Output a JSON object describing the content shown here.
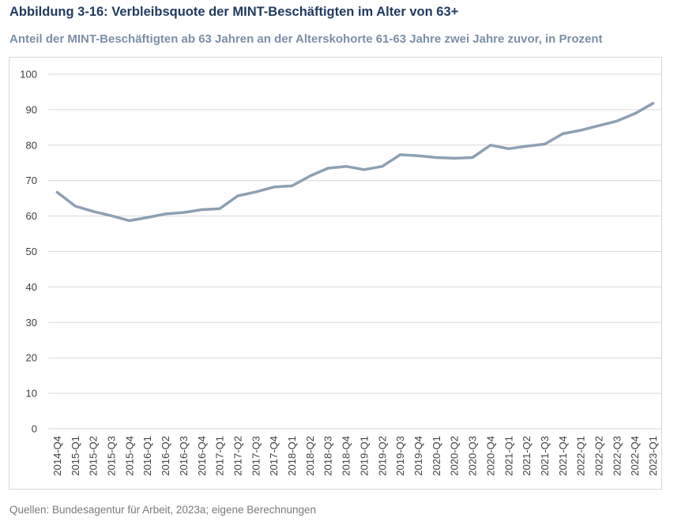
{
  "header": {
    "title": "Abbildung 3-16: Verbleibsquote der MINT-Beschäftigten im Alter von 63+",
    "subtitle": "Anteil der MINT-Beschäftigten ab 63 Jahren an der Alterskohorte 61-63 Jahre zwei Jahre zuvor, in Prozent"
  },
  "footer": {
    "source": "Quellen: Bundesagentur für Arbeit, 2023a; eigene Berechnungen"
  },
  "colors": {
    "line": "#8ea0b3",
    "grid": "#d9d9d9",
    "title": "#1f3a5f",
    "subtitle": "#7b8fa6"
  },
  "chart_data": {
    "type": "line",
    "title": "Abbildung 3-16: Verbleibsquote der MINT-Beschäftigten im Alter von 63+",
    "subtitle": "Anteil der MINT-Beschäftigten ab 63 Jahren an der Alterskohorte 61-63 Jahre zwei Jahre zuvor, in Prozent",
    "xlabel": "",
    "ylabel": "",
    "ylim": [
      0,
      100
    ],
    "yticks": [
      0,
      10,
      20,
      30,
      40,
      50,
      60,
      70,
      80,
      90,
      100
    ],
    "grid": true,
    "legend": "none",
    "categories": [
      "2014-Q4",
      "2015-Q1",
      "2015-Q2",
      "2015-Q3",
      "2015-Q4",
      "2016-Q1",
      "2016-Q2",
      "2016-Q3",
      "2016-Q4",
      "2017-Q1",
      "2017-Q2",
      "2017-Q3",
      "2017-Q4",
      "2018-Q1",
      "2018-Q2",
      "2018-Q3",
      "2018-Q4",
      "2019-Q1",
      "2019-Q2",
      "2019-Q3",
      "2019-Q4",
      "2020-Q1",
      "2020-Q2",
      "2020-Q3",
      "2020-Q4",
      "2021-Q1",
      "2021-Q2",
      "2021-Q3",
      "2021-Q4",
      "2022-Q1",
      "2022-Q2",
      "2022-Q3",
      "2022-Q4",
      "2023-Q1"
    ],
    "series": [
      {
        "values": [
          66.7,
          62.8,
          61.3,
          60.1,
          58.7,
          59.6,
          60.6,
          61.0,
          61.8,
          62.1,
          65.7,
          66.8,
          68.2,
          68.5,
          71.3,
          73.5,
          74.0,
          73.1,
          74.0,
          77.3,
          77.0,
          76.5,
          76.3,
          76.5,
          80.0,
          79.0,
          79.7,
          80.3,
          83.2,
          84.2,
          85.5,
          86.8,
          88.9,
          91.8
        ]
      }
    ]
  }
}
